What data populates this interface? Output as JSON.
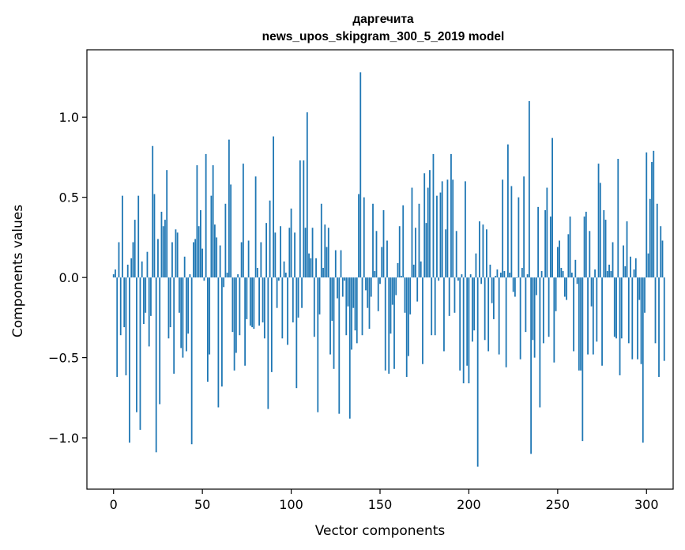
{
  "chart_data": {
    "type": "bar",
    "title_lines": [
      "даргечита",
      "news_upos_skipgram_300_5_2019 model"
    ],
    "xlabel": "Vector components",
    "ylabel": "Components values",
    "xlim": [
      -15,
      315
    ],
    "ylim": [
      -1.32,
      1.42
    ],
    "xticks": [
      0,
      50,
      100,
      150,
      200,
      250,
      300
    ],
    "xtick_labels": [
      "0",
      "50",
      "100",
      "150",
      "200",
      "250",
      "300"
    ],
    "yticks": [
      -1.0,
      -0.5,
      0.0,
      0.5,
      1.0
    ],
    "ytick_labels": [
      "−1.0",
      "−0.5",
      "0.0",
      "0.5",
      "1.0"
    ],
    "bar_color": "#1f77b4",
    "values": [
      0.02,
      0.05,
      -0.62,
      0.22,
      -0.36,
      0.51,
      -0.31,
      -0.61,
      0.08,
      -1.03,
      0.12,
      0.22,
      0.36,
      -0.84,
      0.51,
      -0.95,
      0.1,
      -0.29,
      -0.22,
      0.16,
      -0.43,
      -0.24,
      0.82,
      0.52,
      -1.09,
      0.24,
      -0.79,
      0.41,
      0.32,
      0.36,
      0.67,
      -0.38,
      -0.31,
      0.22,
      -0.6,
      0.3,
      0.28,
      -0.22,
      -0.44,
      -0.5,
      0.13,
      -0.46,
      -0.35,
      0.02,
      -1.04,
      0.22,
      0.24,
      0.7,
      0.32,
      0.42,
      0.18,
      -0.02,
      0.77,
      -0.65,
      -0.48,
      0.51,
      0.7,
      0.33,
      0.25,
      -0.81,
      0.2,
      -0.68,
      -0.06,
      0.46,
      0.03,
      0.86,
      0.58,
      -0.34,
      -0.58,
      -0.47,
      0.02,
      -0.36,
      0.22,
      0.71,
      -0.55,
      -0.26,
      0.23,
      -0.3,
      -0.31,
      -0.32,
      0.63,
      0.06,
      -0.3,
      0.22,
      -0.28,
      -0.38,
      0.34,
      -0.82,
      0.48,
      -0.59,
      0.88,
      0.28,
      -0.19,
      -0.02,
      0.32,
      -0.38,
      0.1,
      0.03,
      -0.42,
      0.31,
      0.43,
      -0.28,
      0.28,
      -0.69,
      -0.25,
      0.73,
      -0.19,
      0.73,
      0.31,
      1.03,
      0.15,
      0.12,
      0.31,
      -0.37,
      0.12,
      -0.84,
      -0.23,
      0.46,
      0.06,
      0.33,
      0.19,
      0.31,
      -0.48,
      -0.27,
      -0.57,
      0.17,
      -0.13,
      -0.85,
      0.17,
      -0.12,
      -0.02,
      -0.36,
      -0.18,
      -0.88,
      -0.45,
      -0.19,
      -0.33,
      -0.41,
      0.52,
      1.28,
      -0.36,
      0.5,
      -0.08,
      -0.19,
      -0.32,
      -0.12,
      0.46,
      0.04,
      0.29,
      -0.21,
      -0.04,
      0.19,
      0.42,
      -0.58,
      0.23,
      -0.6,
      -0.35,
      -0.17,
      -0.57,
      -0.11,
      0.09,
      0.32,
      0.01,
      0.45,
      -0.22,
      -0.62,
      -0.49,
      -0.23,
      0.56,
      0.08,
      0.31,
      -0.15,
      0.46,
      0.1,
      -0.54,
      0.65,
      0.34,
      0.56,
      0.67,
      -0.36,
      0.77,
      -0.36,
      0.51,
      -0.02,
      0.53,
      0.6,
      -0.46,
      0.3,
      0.61,
      -0.24,
      0.77,
      0.61,
      -0.22,
      0.29,
      -0.02,
      -0.58,
      0.02,
      -0.66,
      0.6,
      -0.55,
      -0.66,
      0.02,
      -0.4,
      -0.33,
      0.15,
      -1.18,
      0.35,
      -0.04,
      0.33,
      -0.39,
      0.3,
      -0.46,
      0.08,
      -0.16,
      -0.26,
      0.01,
      0.05,
      -0.48,
      0.03,
      0.61,
      0.04,
      -0.56,
      0.83,
      0.03,
      0.57,
      -0.09,
      -0.12,
      0.0,
      0.5,
      -0.51,
      0.06,
      0.63,
      -0.34,
      0.02,
      1.1,
      -1.1,
      -0.39,
      -0.5,
      -0.11,
      0.44,
      -0.81,
      0.04,
      -0.41,
      0.42,
      0.56,
      -0.37,
      0.38,
      0.87,
      -0.53,
      -0.21,
      0.19,
      0.23,
      0.06,
      0.04,
      -0.12,
      -0.14,
      0.27,
      0.38,
      0.03,
      -0.46,
      0.11,
      -0.04,
      -0.58,
      -0.58,
      -1.02,
      0.38,
      0.41,
      -0.48,
      0.29,
      -0.18,
      -0.48,
      0.05,
      -0.4,
      0.71,
      0.59,
      -0.55,
      0.42,
      0.36,
      0.04,
      0.08,
      0.04,
      0.22,
      -0.37,
      -0.38,
      0.74,
      -0.61,
      -0.38,
      0.2,
      0.07,
      0.35,
      -0.41,
      0.13,
      -0.51,
      0.05,
      0.12,
      -0.51,
      -0.14,
      -0.54,
      -1.03,
      -0.22,
      0.78,
      0.15,
      0.49,
      0.72,
      0.79,
      -0.41,
      0.46,
      -0.62,
      0.32,
      0.23,
      -0.52
    ]
  }
}
